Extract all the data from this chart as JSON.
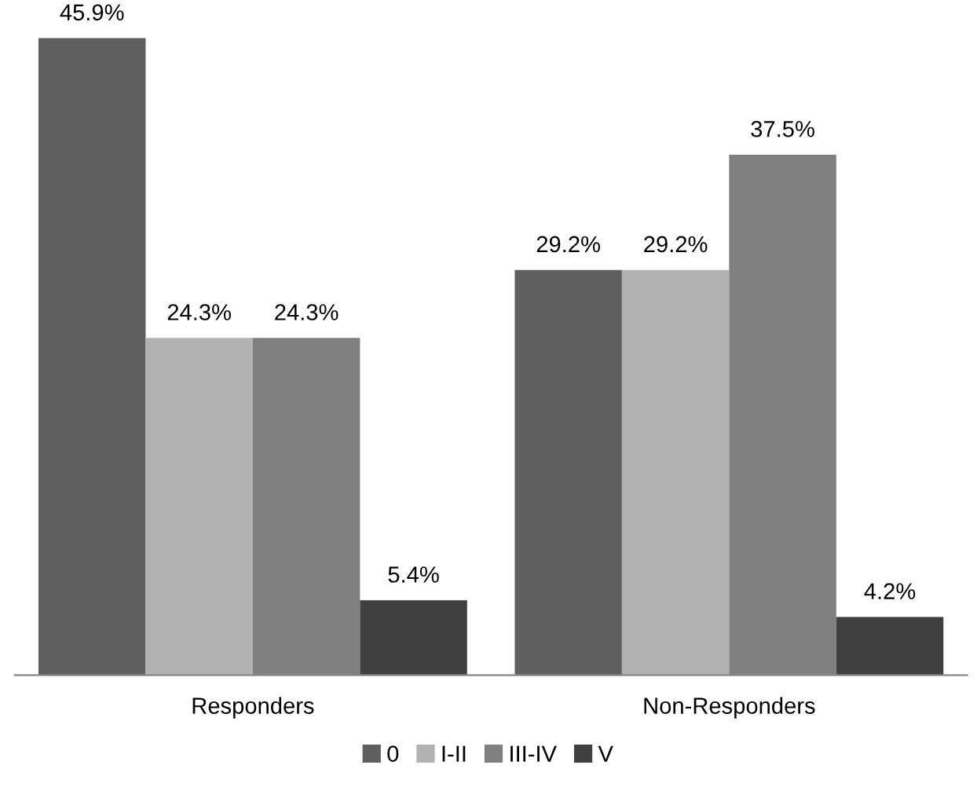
{
  "chart_data": {
    "type": "bar",
    "categories": [
      "Responders",
      "Non-Responders"
    ],
    "series": [
      {
        "name": "0",
        "color": "#5f5f5f",
        "values": [
          45.9,
          29.2
        ],
        "value_labels": [
          "45.9%",
          "29.2%"
        ]
      },
      {
        "name": "I-II",
        "color": "#b2b2b2",
        "values": [
          24.3,
          29.2
        ],
        "value_labels": [
          "24.3%",
          "29.2%"
        ]
      },
      {
        "name": "III-IV",
        "color": "#808080",
        "values": [
          24.3,
          37.5
        ],
        "value_labels": [
          "24.3%",
          "37.5%"
        ]
      },
      {
        "name": "V",
        "color": "#404040",
        "values": [
          5.4,
          4.2
        ],
        "value_labels": [
          "5.4%",
          "4.2%"
        ]
      }
    ],
    "tick_labels": "x",
    "grid": false,
    "legend": "bottom"
  }
}
